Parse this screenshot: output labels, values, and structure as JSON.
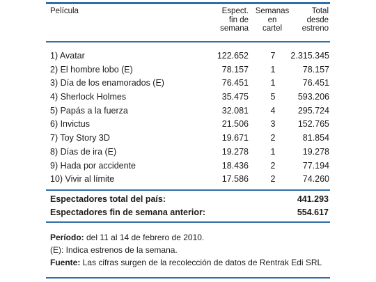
{
  "header": {
    "pelicula": "Película",
    "espect": [
      "Espect.",
      "fin de",
      "semana"
    ],
    "semanas": [
      "Semanas",
      "en",
      "cartel"
    ],
    "total": [
      "Total",
      "desde",
      "estreno"
    ]
  },
  "rows": [
    {
      "title": "1) Avatar",
      "espect": "122.652",
      "semanas": "7",
      "total": "2.315.345"
    },
    {
      "title": "2) El hombre lobo (E)",
      "espect": "78.157",
      "semanas": "1",
      "total": "78.157"
    },
    {
      "title": "3) Día de los enamorados (E)",
      "espect": "76.451",
      "semanas": "1",
      "total": "76.451"
    },
    {
      "title": "4) Sherlock Holmes",
      "espect": "35.475",
      "semanas": "5",
      "total": "593.206"
    },
    {
      "title": "5) Papás a la fuerza",
      "espect": "32.081",
      "semanas": "4",
      "total": "295.724"
    },
    {
      "title": "6) Invictus",
      "espect": "21.506",
      "semanas": "3",
      "total": "152.765"
    },
    {
      "title": "7) Toy Story 3D",
      "espect": "19.671",
      "semanas": "2",
      "total": "81.854"
    },
    {
      "title": "8) Días de ira (E)",
      "espect": "19.278",
      "semanas": "1",
      "total": "19.278"
    },
    {
      "title": "9) Hada por accidente",
      "espect": "18.436",
      "semanas": "2",
      "total": "77.194"
    },
    {
      "title": "10) Vivir al límite",
      "espect": "17.586",
      "semanas": "2",
      "total": "74.260"
    }
  ],
  "summary": {
    "total_label": "Espectadores total del país:",
    "total_value": "441.293",
    "prev_label": "Espectadores fin de semana anterior:",
    "prev_value": "554.617"
  },
  "notes": {
    "periodo_label": "Período:",
    "periodo_text": " del 11 al 14 de febrero de 2010.",
    "estreno_text": "(E): Indica estrenos de la semana.",
    "fuente_label": "Fuente:",
    "fuente_text": " Las cifras surgen de la recolección de datos de Rentrak Edi SRL"
  },
  "colors": {
    "rule": "#2f6ea8"
  }
}
